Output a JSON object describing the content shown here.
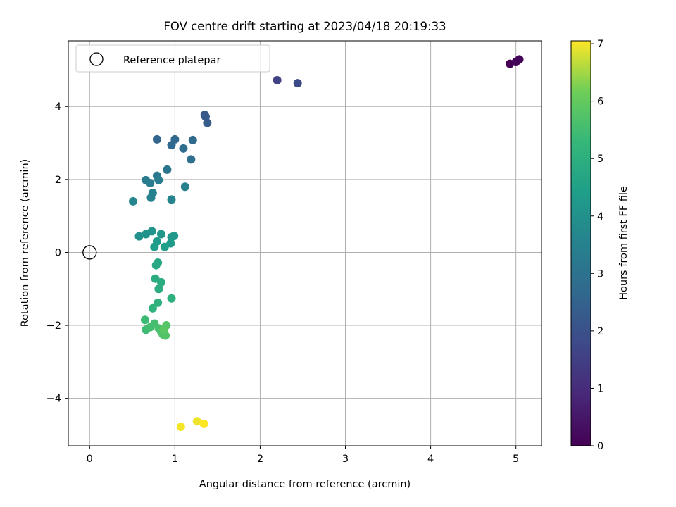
{
  "chart_data": {
    "type": "scatter",
    "title": "FOV centre drift starting at 2023/04/18 20:19:33",
    "xlabel": "Angular distance from reference (arcmin)",
    "ylabel": "Rotation from reference (arcmin)",
    "xlim": [
      -0.25,
      5.3
    ],
    "ylim": [
      -5.3,
      5.8
    ],
    "xticks": [
      0,
      1,
      2,
      3,
      4,
      5
    ],
    "yticks": [
      -4,
      -2,
      0,
      2,
      4
    ],
    "grid": true,
    "legend": {
      "placement": "top-left",
      "entries": [
        "Reference platepar"
      ]
    },
    "reference_point": {
      "x": 0,
      "y": 0
    },
    "colorbar": {
      "label": "Hours from first FF file",
      "range": [
        0,
        7.05
      ],
      "ticks": [
        0,
        1,
        2,
        3,
        4,
        5,
        6,
        7
      ],
      "colormap": "viridis"
    },
    "points": [
      {
        "x": 4.93,
        "y": 5.17,
        "c": 0.0
      },
      {
        "x": 5.0,
        "y": 5.22,
        "c": 0.05
      },
      {
        "x": 5.04,
        "y": 5.29,
        "c": 0.1
      },
      {
        "x": 2.2,
        "y": 4.72,
        "c": 1.6
      },
      {
        "x": 2.44,
        "y": 4.64,
        "c": 1.8
      },
      {
        "x": 1.35,
        "y": 3.77,
        "c": 2.2
      },
      {
        "x": 1.36,
        "y": 3.72,
        "c": 2.25
      },
      {
        "x": 1.38,
        "y": 3.55,
        "c": 2.3
      },
      {
        "x": 0.79,
        "y": 3.1,
        "c": 2.6
      },
      {
        "x": 1.0,
        "y": 3.1,
        "c": 2.65
      },
      {
        "x": 0.96,
        "y": 2.94,
        "c": 2.7
      },
      {
        "x": 1.21,
        "y": 3.08,
        "c": 2.75
      },
      {
        "x": 1.1,
        "y": 2.85,
        "c": 2.8
      },
      {
        "x": 1.19,
        "y": 2.55,
        "c": 2.9
      },
      {
        "x": 0.91,
        "y": 2.27,
        "c": 3.1
      },
      {
        "x": 0.79,
        "y": 2.1,
        "c": 3.2
      },
      {
        "x": 0.66,
        "y": 1.98,
        "c": 3.3
      },
      {
        "x": 0.81,
        "y": 1.98,
        "c": 3.35
      },
      {
        "x": 0.71,
        "y": 1.9,
        "c": 3.4
      },
      {
        "x": 1.12,
        "y": 1.8,
        "c": 3.45
      },
      {
        "x": 0.74,
        "y": 1.63,
        "c": 3.5
      },
      {
        "x": 0.72,
        "y": 1.5,
        "c": 3.55
      },
      {
        "x": 0.96,
        "y": 1.45,
        "c": 3.6
      },
      {
        "x": 0.51,
        "y": 1.4,
        "c": 3.65
      },
      {
        "x": 0.58,
        "y": 0.44,
        "c": 4.0
      },
      {
        "x": 0.66,
        "y": 0.5,
        "c": 4.05
      },
      {
        "x": 0.73,
        "y": 0.58,
        "c": 4.1
      },
      {
        "x": 0.84,
        "y": 0.5,
        "c": 4.15
      },
      {
        "x": 0.96,
        "y": 0.42,
        "c": 4.2
      },
      {
        "x": 0.99,
        "y": 0.45,
        "c": 4.25
      },
      {
        "x": 0.79,
        "y": 0.3,
        "c": 4.3
      },
      {
        "x": 0.95,
        "y": 0.25,
        "c": 4.35
      },
      {
        "x": 0.76,
        "y": 0.15,
        "c": 4.4
      },
      {
        "x": 0.88,
        "y": 0.15,
        "c": 4.45
      },
      {
        "x": 0.8,
        "y": -0.28,
        "c": 4.7
      },
      {
        "x": 0.78,
        "y": -0.35,
        "c": 4.75
      },
      {
        "x": 0.77,
        "y": -0.72,
        "c": 4.85
      },
      {
        "x": 0.84,
        "y": -0.82,
        "c": 4.9
      },
      {
        "x": 0.81,
        "y": -1.0,
        "c": 4.95
      },
      {
        "x": 0.96,
        "y": -1.26,
        "c": 5.0
      },
      {
        "x": 0.8,
        "y": -1.38,
        "c": 5.05
      },
      {
        "x": 0.74,
        "y": -1.53,
        "c": 5.1
      },
      {
        "x": 0.65,
        "y": -1.85,
        "c": 5.4
      },
      {
        "x": 0.66,
        "y": -2.12,
        "c": 5.45
      },
      {
        "x": 0.71,
        "y": -2.05,
        "c": 5.5
      },
      {
        "x": 0.76,
        "y": -1.95,
        "c": 5.55
      },
      {
        "x": 0.81,
        "y": -2.08,
        "c": 5.6
      },
      {
        "x": 0.84,
        "y": -2.18,
        "c": 5.65
      },
      {
        "x": 0.86,
        "y": -2.25,
        "c": 5.7
      },
      {
        "x": 0.89,
        "y": -2.28,
        "c": 5.75
      },
      {
        "x": 0.9,
        "y": -2.0,
        "c": 5.8
      },
      {
        "x": 0.87,
        "y": -2.12,
        "c": 5.85
      },
      {
        "x": 1.07,
        "y": -4.78,
        "c": 7.0
      },
      {
        "x": 1.26,
        "y": -4.63,
        "c": 6.95
      },
      {
        "x": 1.34,
        "y": -4.7,
        "c": 7.05
      }
    ]
  }
}
